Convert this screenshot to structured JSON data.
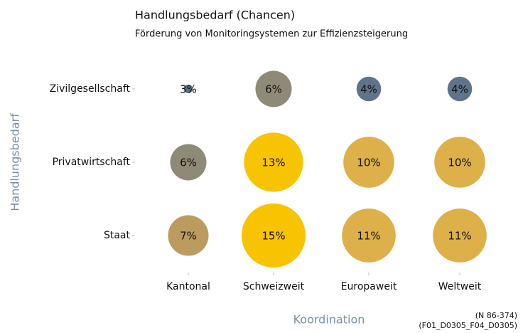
{
  "chart_data": {
    "type": "bubble",
    "title": "Handlungsbedarf (Chancen)",
    "subtitle": "Förderung von Monitoringsystemen zur Effizienzsteigerung",
    "x_label": "Koordination",
    "y_label": "Handlungsbedarf",
    "notes": [
      "(N 86-374)",
      "(F01_D0305_F04_D0305)"
    ],
    "categories": [
      "Kantonal",
      "Schweizweit",
      "Europaweit",
      "Weltweit"
    ],
    "series": [
      {
        "name": "Zivilgesellschaft",
        "values": [
          3,
          6,
          4,
          4
        ],
        "value_labels": [
          "3%",
          "6%",
          "4%",
          "4%"
        ],
        "colors": [
          "#5a6e85",
          "#8f8a78",
          "#5f7389",
          "#5f7389"
        ]
      },
      {
        "name": "Privatwirtschaft",
        "values": [
          6,
          13,
          10,
          10
        ],
        "value_labels": [
          "6%",
          "13%",
          "10%",
          "10%"
        ],
        "colors": [
          "#8f8a78",
          "#f8c300",
          "#deb04a",
          "#deb04a"
        ]
      },
      {
        "name": "Staat",
        "values": [
          7,
          15,
          11,
          11
        ],
        "value_labels": [
          "7%",
          "15%",
          "11%",
          "11%"
        ],
        "colors": [
          "#bc9c5e",
          "#f8c300",
          "#deb04a",
          "#deb04a"
        ]
      }
    ]
  }
}
